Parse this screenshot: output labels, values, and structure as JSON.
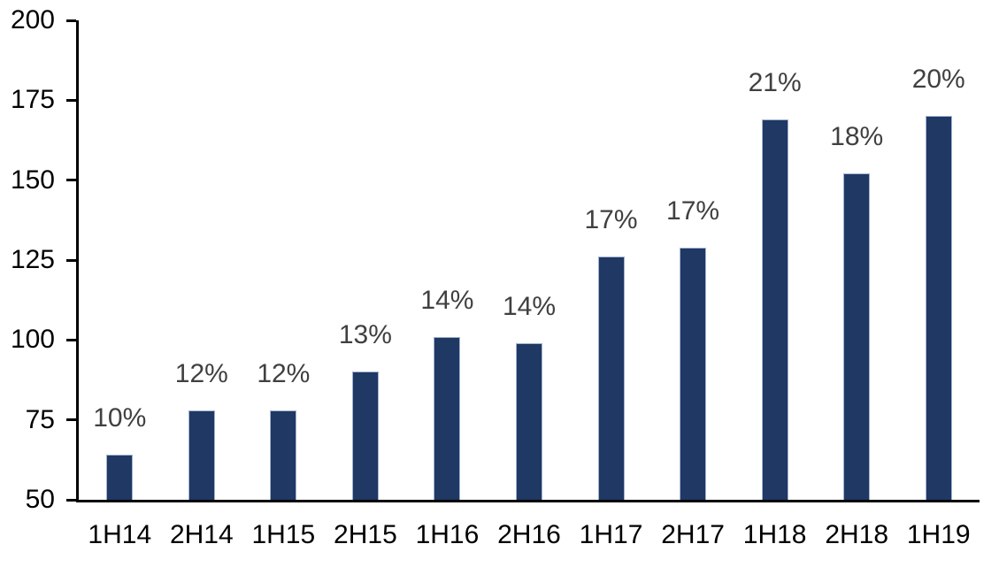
{
  "chart_data": {
    "type": "bar",
    "title": "",
    "xlabel": "",
    "ylabel": "",
    "categories": [
      "1H14",
      "2H14",
      "1H15",
      "2H15",
      "1H16",
      "2H16",
      "1H17",
      "2H17",
      "1H18",
      "2H18",
      "1H19"
    ],
    "values": [
      64,
      78,
      78,
      90,
      101,
      99,
      126,
      129,
      169,
      152,
      170
    ],
    "bar_labels": [
      "10%",
      "12%",
      "12%",
      "13%",
      "14%",
      "14%",
      "17%",
      "17%",
      "21%",
      "18%",
      "20%"
    ],
    "ylim": [
      50,
      200
    ],
    "y_ticks": [
      50,
      75,
      100,
      125,
      150,
      175,
      200
    ],
    "grid": false,
    "legend": "none",
    "colors": {
      "bar_fill": "#1F3864",
      "bar_border": "#A3B3CE",
      "data_label": "#404040",
      "tick_label": "#000000",
      "axis_line": "#000000",
      "background": "#FFFFFF"
    }
  }
}
